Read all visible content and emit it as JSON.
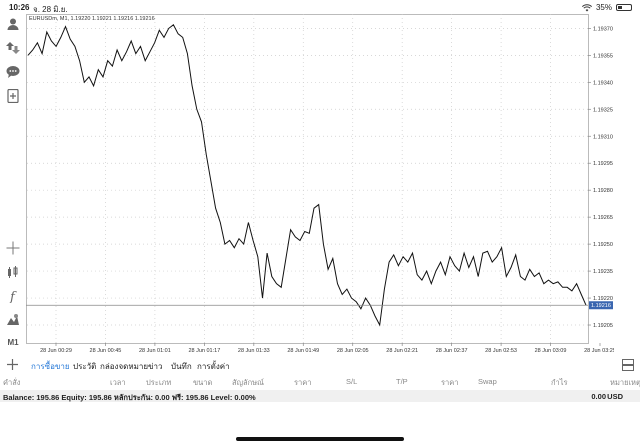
{
  "status": {
    "time": "10:26",
    "date": "จ. 28 มิ.ย.",
    "battery": "35%",
    "battery_level": 0.35
  },
  "symbol_line": "EURUSDm, M1, 1.19220 1.19221 1.19216 1.19216",
  "price_axis": [
    "1.19370",
    "1.19355",
    "1.19340",
    "1.19325",
    "1.19310",
    "1.19295",
    "1.19280",
    "1.19265",
    "1.19250",
    "1.19235",
    "1.19220",
    "1.19205"
  ],
  "current_price": "1.19216",
  "time_axis": [
    "28 Jun 00:29",
    "28 Jun 00:45",
    "28 Jun 01:01",
    "28 Jun 01:17",
    "28 Jun 01:33",
    "28 Jun 01:49",
    "28 Jun 02:05",
    "28 Jun 02:21",
    "28 Jun 02:37",
    "28 Jun 02:53",
    "28 Jun 03:09",
    "28 Jun 03:25"
  ],
  "chart_data": {
    "type": "line",
    "title": "EURUSDm, M1",
    "y_range": [
      1.19195,
      1.19378
    ],
    "values": [
      1.19355,
      1.19358,
      1.19362,
      1.19356,
      1.19368,
      1.19363,
      1.1936,
      1.19365,
      1.19371,
      1.19364,
      1.1936,
      1.19352,
      1.1934,
      1.19343,
      1.19338,
      1.19347,
      1.19343,
      1.19352,
      1.19349,
      1.19358,
      1.19352,
      1.19357,
      1.19363,
      1.19356,
      1.1936,
      1.19352,
      1.19357,
      1.19362,
      1.19369,
      1.19365,
      1.1937,
      1.19372,
      1.19367,
      1.19365,
      1.19356,
      1.19338,
      1.19325,
      1.19318,
      1.193,
      1.19285,
      1.1927,
      1.19262,
      1.1925,
      1.19252,
      1.19248,
      1.19253,
      1.1925,
      1.19262,
      1.19252,
      1.19243,
      1.1922,
      1.19245,
      1.19232,
      1.19228,
      1.19226,
      1.19242,
      1.19258,
      1.19254,
      1.19252,
      1.19257,
      1.19256,
      1.1927,
      1.19272,
      1.1925,
      1.19236,
      1.19242,
      1.19228,
      1.19222,
      1.19225,
      1.1922,
      1.19218,
      1.19214,
      1.1922,
      1.19216,
      1.1921,
      1.19205,
      1.19225,
      1.1924,
      1.19244,
      1.19238,
      1.19243,
      1.1924,
      1.19245,
      1.19233,
      1.1923,
      1.19235,
      1.19228,
      1.19235,
      1.1924,
      1.19233,
      1.19243,
      1.19238,
      1.19235,
      1.19245,
      1.19237,
      1.19243,
      1.19232,
      1.19245,
      1.19246,
      1.1924,
      1.19243,
      1.19248,
      1.19232,
      1.19237,
      1.19244,
      1.19232,
      1.1923,
      1.19236,
      1.19232,
      1.19234,
      1.19228,
      1.1923,
      1.19228,
      1.19229,
      1.19226,
      1.19226,
      1.19224,
      1.19228,
      1.19222,
      1.19216
    ]
  },
  "sidebar_icons": [
    "account-icon",
    "trade-icon",
    "chat-icon",
    "new-order-icon",
    "crosshair-icon",
    "indicators-icon",
    "function-icon",
    "objects-icon"
  ],
  "timeframe": "M1",
  "tabs": [
    "การซื้อขาย",
    "ประวัติ",
    "กล่องจดหมาย",
    "ข่าว",
    "บันทึก",
    "การตั้งค่า"
  ],
  "columns": [
    "คำสั่ง",
    "เวลา",
    "ประเภท",
    "ขนาด",
    "สัญลักษณ์",
    "ราคา",
    "S/L",
    "T/P",
    "ราคา",
    "Swap",
    "กำไร",
    "หมายเหตุ"
  ],
  "balance": {
    "text": "Balance: 195.86 Equity: 195.86 หลักประกัน: 0.00 ฟรี: 195.86 Level: 0.00%",
    "value": "0.00",
    "currency": "USD"
  },
  "colors": {
    "accent": "#2a7bd8",
    "price_tag": "#3a66b0"
  }
}
